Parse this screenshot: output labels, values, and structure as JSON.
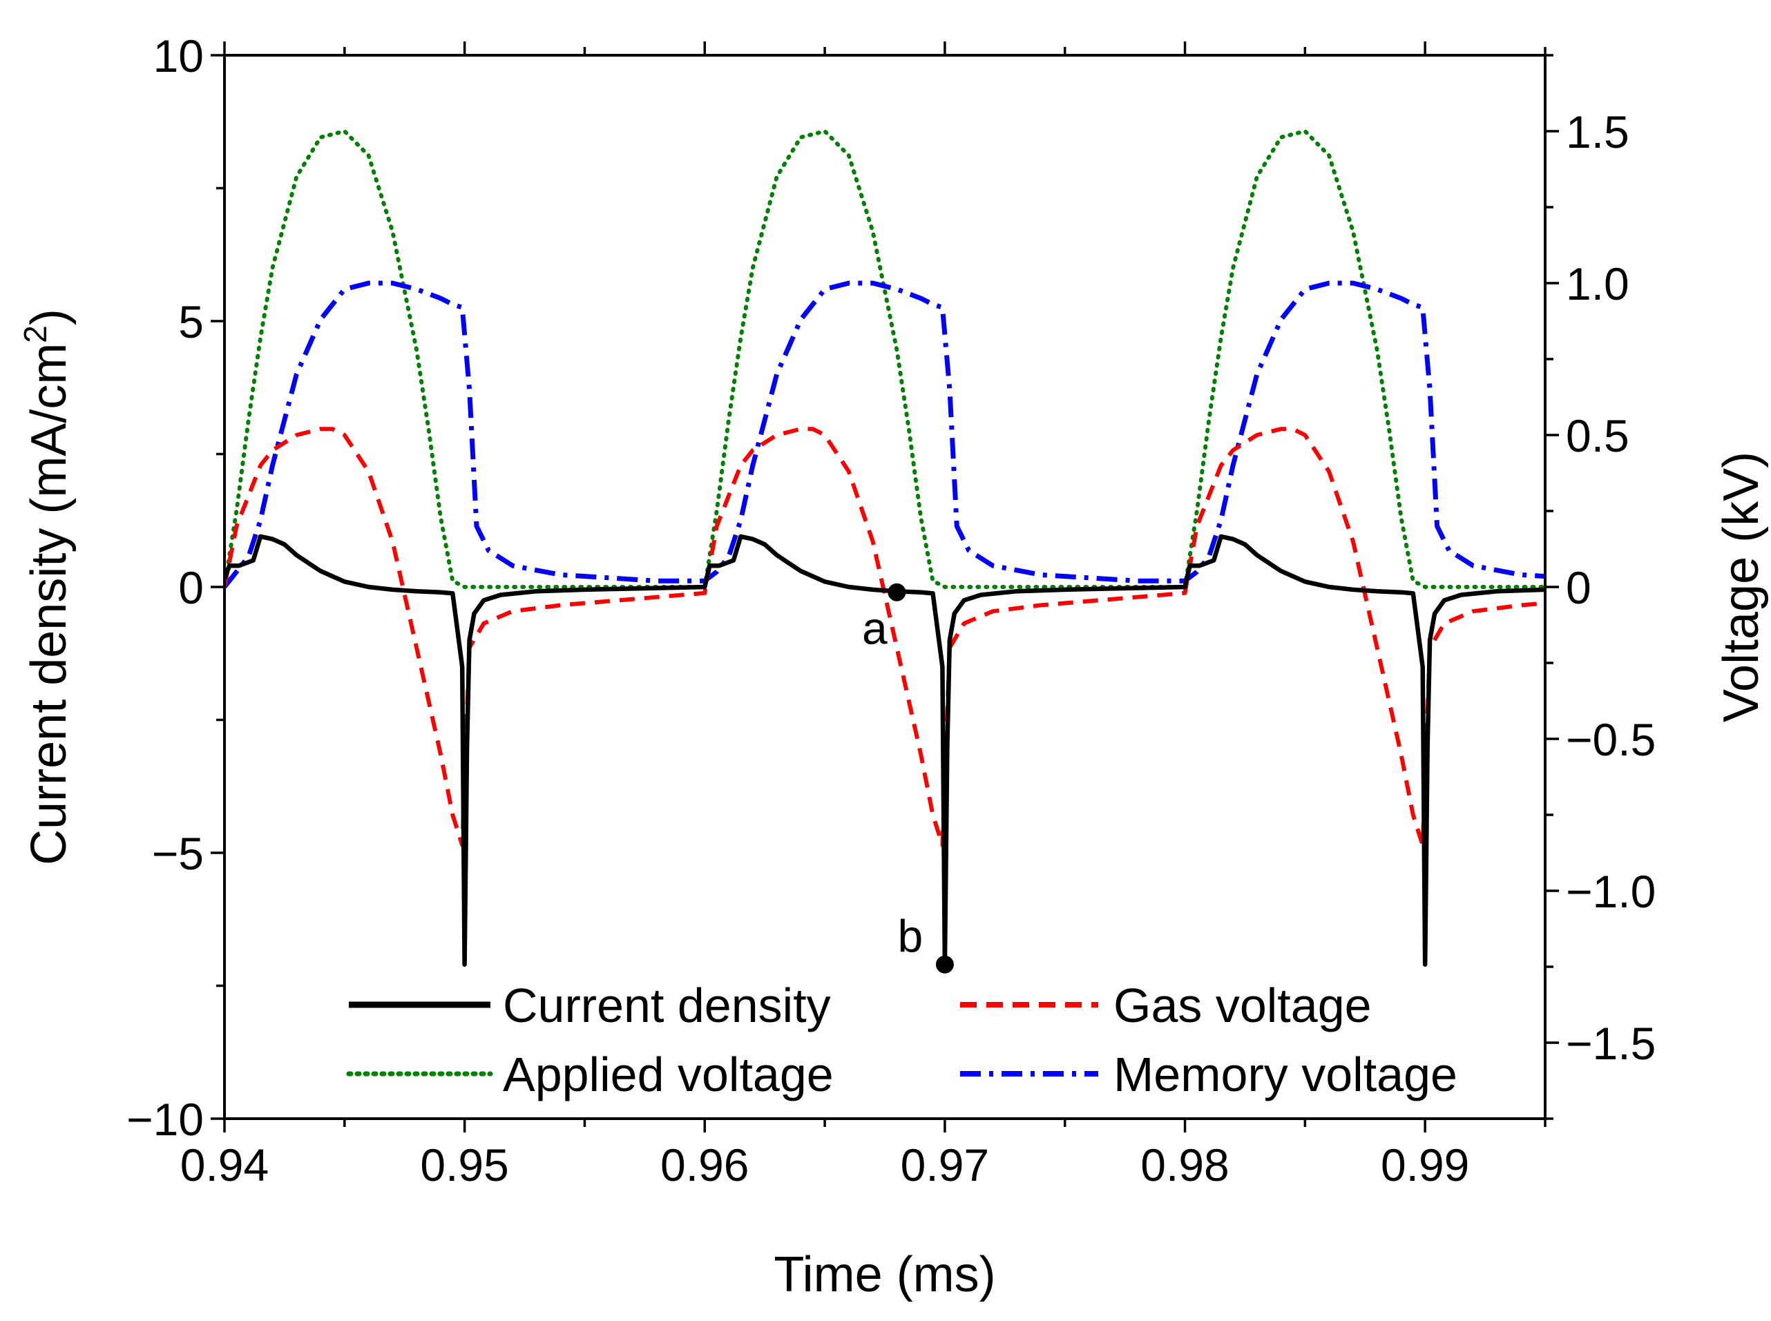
{
  "chart_data": {
    "type": "line",
    "title": "",
    "xlabel": "Time (ms)",
    "ylabel_left": "Current density (mA/cm",
    "ylabel_left_sup": "2",
    "ylabel_left_close": ")",
    "ylabel_right": "Voltage (kV)",
    "xlim": [
      0.94,
      0.995
    ],
    "ylim_left": [
      -10,
      10
    ],
    "ylim_right": [
      -1.75,
      1.75
    ],
    "x_ticks": [
      0.94,
      0.95,
      0.96,
      0.97,
      0.98,
      0.99
    ],
    "x_tick_labels": [
      "0.94",
      "0.95",
      "0.96",
      "0.97",
      "0.98",
      "0.99"
    ],
    "y_left_ticks": [
      -10,
      -5,
      0,
      5,
      10
    ],
    "y_left_tick_labels": [
      "−10",
      "−5",
      "0",
      "5",
      "10"
    ],
    "y_right_ticks": [
      -1.5,
      -1.0,
      -0.5,
      0,
      0.5,
      1.0,
      1.5
    ],
    "y_right_tick_labels": [
      "−1.5",
      "−1.0",
      "−0.5",
      "0",
      "0.5",
      "1.0",
      "1.5"
    ],
    "period_ms": 0.02,
    "series": [
      {
        "name": "Current density",
        "axis": "left",
        "color": "#000000",
        "style": "solid",
        "x": [
          0.94,
          0.9402,
          0.9406,
          0.9412,
          0.9415,
          0.942,
          0.9425,
          0.943,
          0.9435,
          0.944,
          0.9445,
          0.945,
          0.946,
          0.947,
          0.948,
          0.949,
          0.9495,
          0.9499,
          0.95,
          0.9501,
          0.9502,
          0.9504,
          0.9508,
          0.9515,
          0.953,
          0.955,
          0.96
        ],
        "y": [
          0.15,
          0.4,
          0.4,
          0.5,
          0.95,
          0.9,
          0.8,
          0.6,
          0.45,
          0.3,
          0.2,
          0.1,
          0.0,
          -0.05,
          -0.08,
          -0.1,
          -0.12,
          -1.5,
          -7.1,
          -3.0,
          -1.0,
          -0.5,
          -0.25,
          -0.15,
          -0.08,
          -0.05,
          0.0
        ]
      },
      {
        "name": "Gas voltage",
        "axis": "right",
        "color": "#ff0000",
        "style": "dashed",
        "x": [
          0.94,
          0.9405,
          0.941,
          0.9415,
          0.942,
          0.943,
          0.944,
          0.9445,
          0.945,
          0.946,
          0.947,
          0.948,
          0.949,
          0.9495,
          0.9499,
          0.9502,
          0.9508,
          0.952,
          0.954,
          0.957,
          0.96
        ],
        "y": [
          0.0,
          0.2,
          0.3,
          0.4,
          0.45,
          0.5,
          0.52,
          0.52,
          0.5,
          0.38,
          0.15,
          -0.2,
          -0.55,
          -0.75,
          -0.85,
          -0.2,
          -0.12,
          -0.08,
          -0.06,
          -0.04,
          -0.02
        ]
      },
      {
        "name": "Applied voltage",
        "axis": "right",
        "color": "#008000",
        "style": "dotted",
        "x": [
          0.94,
          0.9405,
          0.941,
          0.9415,
          0.942,
          0.943,
          0.944,
          0.945,
          0.946,
          0.947,
          0.948,
          0.9485,
          0.949,
          0.9495,
          0.95,
          0.96
        ],
        "y": [
          0.0,
          0.25,
          0.55,
          0.82,
          1.05,
          1.35,
          1.48,
          1.5,
          1.42,
          1.17,
          0.78,
          0.52,
          0.23,
          0.02,
          0.0,
          0.0
        ]
      },
      {
        "name": "Memory voltage",
        "axis": "right",
        "color": "#0000ff",
        "style": "dashdot",
        "x": [
          0.94,
          0.9405,
          0.941,
          0.9415,
          0.942,
          0.943,
          0.944,
          0.945,
          0.946,
          0.947,
          0.948,
          0.949,
          0.9495,
          0.9499,
          0.9502,
          0.9505,
          0.951,
          0.952,
          0.954,
          0.956,
          0.958,
          0.96
        ],
        "y": [
          0.0,
          0.05,
          0.1,
          0.22,
          0.4,
          0.7,
          0.88,
          0.98,
          1.0,
          1.0,
          0.98,
          0.95,
          0.93,
          0.92,
          0.65,
          0.2,
          0.12,
          0.07,
          0.04,
          0.03,
          0.02,
          0.02
        ]
      }
    ],
    "legend": {
      "placement": "bottom",
      "entries": [
        "Current density",
        "Gas voltage",
        "Applied voltage",
        "Memory voltage"
      ]
    },
    "annotations": [
      {
        "label": "a",
        "x": 0.968,
        "y": -0.1,
        "axis": "left"
      },
      {
        "label": "b",
        "x": 0.97,
        "y": -7.1,
        "axis": "left"
      }
    ],
    "grid": false
  }
}
